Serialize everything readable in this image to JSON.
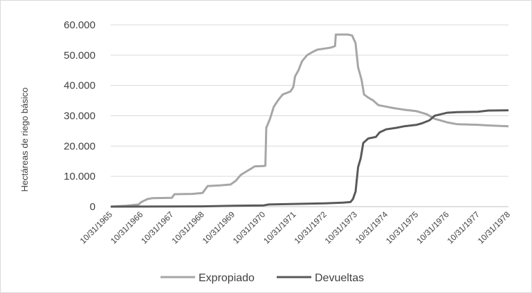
{
  "chart_data": {
    "type": "line",
    "title": "",
    "xlabel": "",
    "ylabel": "Hectáreas de riego básico",
    "ylim": [
      0,
      60000
    ],
    "xlim": [
      "10/31/1965",
      "10/31/1978"
    ],
    "grid": true,
    "legend_position": "bottom",
    "y_ticks": [
      {
        "value": 0,
        "label": "0"
      },
      {
        "value": 10000,
        "label": "10.000"
      },
      {
        "value": 20000,
        "label": "20.000"
      },
      {
        "value": 30000,
        "label": "30.000"
      },
      {
        "value": 40000,
        "label": "40.000"
      },
      {
        "value": 50000,
        "label": "50.000"
      },
      {
        "value": 60000,
        "label": "60.000"
      }
    ],
    "x_ticks": [
      "10/31/1965",
      "10/31/1966",
      "10/31/1967",
      "10/31/1968",
      "10/31/1969",
      "10/31/1970",
      "10/31/1971",
      "10/31/1972",
      "10/31/1973",
      "10/31/1974",
      "10/31/1975",
      "10/31/1976",
      "10/31/1977",
      "10/31/1978"
    ],
    "series": [
      {
        "name": "Expropiado",
        "color": "#a6a6a6",
        "points": [
          [
            "1965-10-31",
            0
          ],
          [
            "1966-04-30",
            300
          ],
          [
            "1966-09-30",
            700
          ],
          [
            "1966-10-31",
            1500
          ],
          [
            "1967-01-15",
            2500
          ],
          [
            "1967-03-15",
            2800
          ],
          [
            "1967-10-31",
            2900
          ],
          [
            "1967-12-01",
            4100
          ],
          [
            "1968-06-30",
            4200
          ],
          [
            "1968-10-31",
            4500
          ],
          [
            "1969-01-01",
            6800
          ],
          [
            "1969-06-01",
            7000
          ],
          [
            "1969-09-30",
            7300
          ],
          [
            "1969-12-01",
            8500
          ],
          [
            "1970-02-01",
            10500
          ],
          [
            "1970-04-01",
            11500
          ],
          [
            "1970-06-01",
            12500
          ],
          [
            "1970-07-15",
            13300
          ],
          [
            "1970-10-31",
            13400
          ],
          [
            "1970-11-20",
            13500
          ],
          [
            "1970-12-01",
            26000
          ],
          [
            "1971-01-15",
            29000
          ],
          [
            "1971-03-01",
            33000
          ],
          [
            "1971-05-01",
            35500
          ],
          [
            "1971-06-15",
            37000
          ],
          [
            "1971-09-15",
            38000
          ],
          [
            "1971-10-20",
            39500
          ],
          [
            "1971-11-10",
            43000
          ],
          [
            "1971-12-20",
            45000
          ],
          [
            "1972-02-01",
            48000
          ],
          [
            "1972-04-01",
            50000
          ],
          [
            "1972-06-01",
            51000
          ],
          [
            "1972-08-01",
            51800
          ],
          [
            "1972-10-31",
            52200
          ],
          [
            "1973-01-10",
            52500
          ],
          [
            "1973-03-01",
            53000
          ],
          [
            "1973-03-10",
            56800
          ],
          [
            "1973-08-01",
            56800
          ],
          [
            "1973-09-20",
            56500
          ],
          [
            "1973-10-31",
            54000
          ],
          [
            "1973-12-01",
            46000
          ],
          [
            "1974-01-10",
            42000
          ],
          [
            "1974-02-10",
            37000
          ],
          [
            "1974-04-01",
            36000
          ],
          [
            "1974-06-01",
            35000
          ],
          [
            "1974-08-01",
            33500
          ],
          [
            "1974-10-31",
            33000
          ],
          [
            "1975-02-01",
            32500
          ],
          [
            "1975-06-01",
            32000
          ],
          [
            "1975-10-31",
            31500
          ],
          [
            "1976-03-01",
            30500
          ],
          [
            "1976-06-01",
            29000
          ],
          [
            "1976-10-31",
            27800
          ],
          [
            "1977-03-01",
            27200
          ],
          [
            "1977-10-31",
            27000
          ],
          [
            "1978-03-01",
            26800
          ],
          [
            "1978-10-31",
            26500
          ]
        ]
      },
      {
        "name": "Devueltas",
        "color": "#595959",
        "points": [
          [
            "1965-10-31",
            0
          ],
          [
            "1968-10-31",
            100
          ],
          [
            "1969-10-31",
            300
          ],
          [
            "1970-10-31",
            400
          ],
          [
            "1971-01-01",
            700
          ],
          [
            "1971-10-31",
            900
          ],
          [
            "1972-10-31",
            1100
          ],
          [
            "1973-06-01",
            1300
          ],
          [
            "1973-09-01",
            1500
          ],
          [
            "1973-10-01",
            2500
          ],
          [
            "1973-11-01",
            5000
          ],
          [
            "1973-12-01",
            13000
          ],
          [
            "1974-01-01",
            16000
          ],
          [
            "1974-02-01",
            21000
          ],
          [
            "1974-04-01",
            22500
          ],
          [
            "1974-07-01",
            23000
          ],
          [
            "1974-08-15",
            24500
          ],
          [
            "1974-10-31",
            25500
          ],
          [
            "1975-03-01",
            26000
          ],
          [
            "1975-06-01",
            26500
          ],
          [
            "1975-10-31",
            27000
          ],
          [
            "1976-01-01",
            27500
          ],
          [
            "1976-04-01",
            28500
          ],
          [
            "1976-06-01",
            30000
          ],
          [
            "1976-10-31",
            31000
          ],
          [
            "1977-03-01",
            31200
          ],
          [
            "1977-10-31",
            31300
          ],
          [
            "1978-03-01",
            31700
          ],
          [
            "1978-10-31",
            31800
          ]
        ]
      }
    ]
  }
}
